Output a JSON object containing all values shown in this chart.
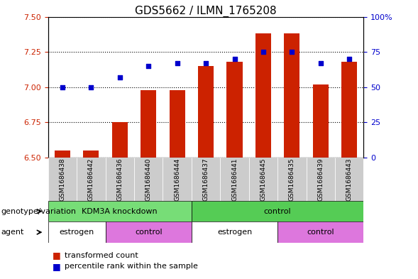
{
  "title": "GDS5662 / ILMN_1765208",
  "samples": [
    "GSM1686438",
    "GSM1686442",
    "GSM1686436",
    "GSM1686440",
    "GSM1686444",
    "GSM1686437",
    "GSM1686441",
    "GSM1686445",
    "GSM1686435",
    "GSM1686439",
    "GSM1686443"
  ],
  "bar_values": [
    6.55,
    6.55,
    6.75,
    6.98,
    6.98,
    7.15,
    7.18,
    7.38,
    7.38,
    7.02,
    7.18
  ],
  "percentile_values": [
    50,
    50,
    57,
    65,
    67,
    67,
    70,
    75,
    75,
    67,
    70
  ],
  "ylim_left": [
    6.5,
    7.5
  ],
  "ylim_right": [
    0,
    100
  ],
  "yticks_left": [
    6.5,
    6.75,
    7.0,
    7.25,
    7.5
  ],
  "yticks_right": [
    0,
    25,
    50,
    75,
    100
  ],
  "bar_color": "#cc2200",
  "dot_color": "#0000cc",
  "bar_width": 0.55,
  "base_value": 6.5,
  "genotype_groups": [
    {
      "label": "KDM3A knockdown",
      "start": 0,
      "end": 5,
      "color": "#77dd77"
    },
    {
      "label": "control",
      "start": 5,
      "end": 11,
      "color": "#55cc55"
    }
  ],
  "agent_groups": [
    {
      "label": "estrogen",
      "start": 0,
      "end": 2,
      "color": "#ffffff"
    },
    {
      "label": "control",
      "start": 2,
      "end": 5,
      "color": "#dd77dd"
    },
    {
      "label": "estrogen",
      "start": 5,
      "end": 8,
      "color": "#ffffff"
    },
    {
      "label": "control",
      "start": 8,
      "end": 11,
      "color": "#dd77dd"
    }
  ],
  "legend_items": [
    {
      "label": "transformed count",
      "color": "#cc2200"
    },
    {
      "label": "percentile rank within the sample",
      "color": "#0000cc"
    }
  ],
  "xlabel_genotype": "genotype/variation",
  "xlabel_agent": "agent",
  "title_fontsize": 11,
  "tick_fontsize": 8,
  "label_fontsize": 8
}
